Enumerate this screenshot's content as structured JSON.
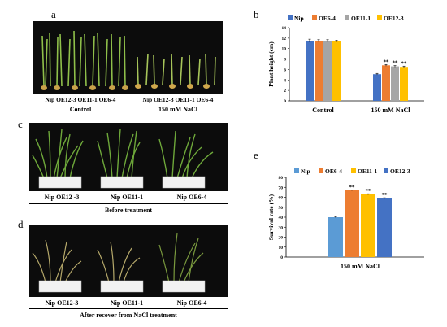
{
  "panels": {
    "a": {
      "letter": "a",
      "left_group_label": "Nip OE12-3 OE11-1 OE6-4",
      "left_condition": "Control",
      "right_group_label": "Nip OE12-3 OE11-1 OE6-4",
      "right_condition": "150 mM NaCl"
    },
    "c": {
      "letter": "c",
      "labels": [
        "Nip OE12 -3",
        "Nip OE11-1",
        "Nip  OE6-4"
      ],
      "caption": "Before treatment"
    },
    "d": {
      "letter": "d",
      "labels": [
        "Nip OE12-3",
        "Nip OE11-1",
        "Nip  OE6-4"
      ],
      "caption": "After recover from NaCl treatment"
    }
  },
  "chart_data": [
    {
      "panel": "b",
      "type": "bar",
      "ylabel": "Plant height (cm)",
      "xlabel": "",
      "ylim": [
        0,
        14
      ],
      "yticks": [
        0,
        2,
        4,
        6,
        8,
        10,
        12,
        14
      ],
      "categories": [
        "Control",
        "150 mM NaCl"
      ],
      "legend": "top",
      "series": [
        {
          "name": "Nip",
          "color": "#4472C4",
          "values": [
            11.5,
            5.1
          ],
          "errors": [
            0.3,
            0.15
          ],
          "sig": [
            "",
            ""
          ]
        },
        {
          "name": "OE6-4",
          "color": "#ED7D31",
          "values": [
            11.5,
            6.8
          ],
          "errors": [
            0.2,
            0.15
          ],
          "sig": [
            "",
            "**"
          ]
        },
        {
          "name": "OE11-1",
          "color": "#A5A5A5",
          "values": [
            11.5,
            6.6
          ],
          "errors": [
            0.2,
            0.15
          ],
          "sig": [
            "",
            "**"
          ]
        },
        {
          "name": "OE12-3",
          "color": "#FFC000",
          "values": [
            11.4,
            6.5
          ],
          "errors": [
            0.2,
            0.15
          ],
          "sig": [
            "",
            "**"
          ]
        }
      ]
    },
    {
      "panel": "e",
      "type": "bar",
      "ylabel": "Survival rate (%)",
      "xlabel": "",
      "ylim": [
        0,
        80
      ],
      "yticks": [
        0,
        10,
        20,
        30,
        40,
        50,
        60,
        70,
        80
      ],
      "categories": [
        "150 mM NaCl"
      ],
      "legend": "top",
      "series": [
        {
          "name": "Nip",
          "color": "#5B9BD5",
          "values": [
            40
          ],
          "errors": [
            0.5
          ],
          "sig": [
            ""
          ]
        },
        {
          "name": "OE6-4",
          "color": "#ED7D31",
          "values": [
            67
          ],
          "errors": [
            0.5
          ],
          "sig": [
            "**"
          ]
        },
        {
          "name": "OE11-1",
          "color": "#FFC000",
          "values": [
            63
          ],
          "errors": [
            0.5
          ],
          "sig": [
            "**"
          ]
        },
        {
          "name": "OE12-3",
          "color": "#4472C4",
          "values": [
            59
          ],
          "errors": [
            0.5
          ],
          "sig": [
            "**"
          ]
        }
      ]
    }
  ],
  "letters": {
    "b": "b",
    "e": "e"
  }
}
